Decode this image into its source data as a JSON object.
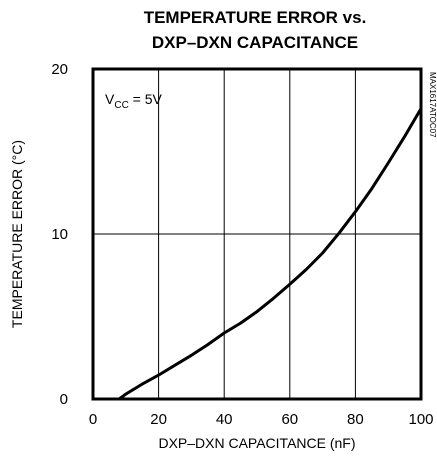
{
  "chart_data": {
    "type": "line",
    "title_line1": "TEMPERATURE ERROR vs.",
    "title_line2": "DXP–DXN CAPACITANCE",
    "xlabel": "DXP–DXN CAPACITANCE (nF)",
    "ylabel": "TEMPERATURE ERROR (°C)",
    "xlim": [
      0,
      100
    ],
    "ylim": [
      0,
      20
    ],
    "x_ticks": [
      0,
      20,
      40,
      60,
      80,
      100
    ],
    "y_ticks": [
      0,
      10,
      20
    ],
    "grid": true,
    "annotation": {
      "prefix": "V",
      "sub": "CC",
      "suffix": " = 5V"
    },
    "side_code": "MAX1617ATOC07",
    "series": [
      {
        "x": [
          8,
          10,
          15,
          20,
          25,
          30,
          35,
          40,
          45,
          50,
          55,
          60,
          65,
          70,
          75,
          80,
          85,
          90,
          95,
          100
        ],
        "y": [
          0,
          0.3,
          0.9,
          1.45,
          2.05,
          2.65,
          3.3,
          4.0,
          4.6,
          5.3,
          6.1,
          6.95,
          7.85,
          8.85,
          10.05,
          11.35,
          12.75,
          14.3,
          15.9,
          17.6
        ]
      }
    ]
  }
}
